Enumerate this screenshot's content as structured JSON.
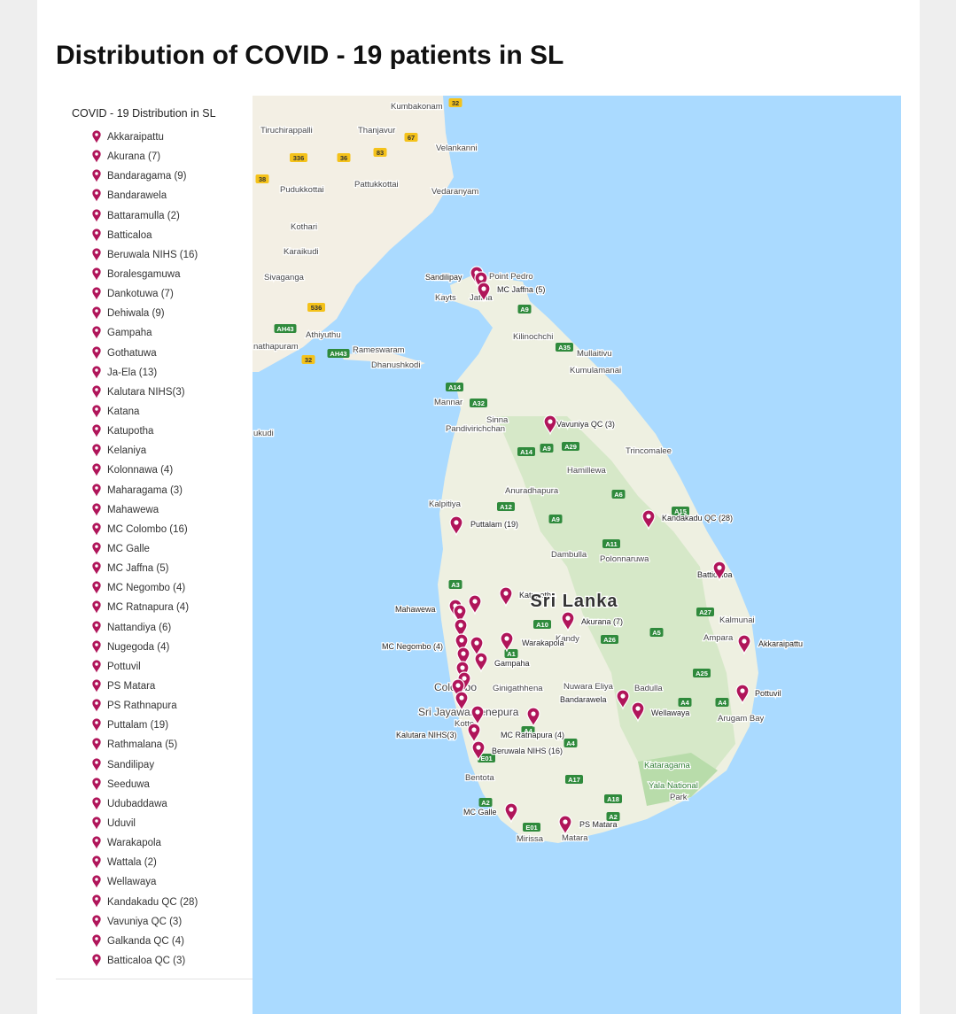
{
  "title": "Distribution of COVID - 19 patients in SL",
  "sidebar": {
    "heading": "COVID - 19 Distribution in SL",
    "items": [
      "Akkaraipattu",
      "Akurana (7)",
      "Bandaragama (9)",
      "Bandarawela",
      "Battaramulla (2)",
      "Batticaloa",
      "Beruwala NIHS (16)",
      "Boralesgamuwa",
      "Dankotuwa (7)",
      "Dehiwala (9)",
      "Gampaha",
      "Gothatuwa",
      "Ja-Ela (13)",
      "Kalutara NIHS(3)",
      "Katana",
      "Katupotha",
      "Kelaniya",
      "Kolonnawa (4)",
      "Maharagama (3)",
      "Mahawewa",
      "MC Colombo (16)",
      "MC Galle",
      "MC Jaffna (5)",
      "MC Negombo (4)",
      "MC Ratnapura (4)",
      "Nattandiya (6)",
      "Nugegoda (4)",
      "Pottuvil",
      "PS Matara",
      "PS Rathnapura",
      "Puttalam (19)",
      "Rathmalana (5)",
      "Sandilipay",
      "Seeduwa",
      "Udubaddawa",
      "Uduvil",
      "Warakapola",
      "Wattala (2)",
      "Wellawaya",
      "Kandakadu QC (28)",
      "Vavuniya QC (3)",
      "Galkanda QC (4)",
      "Batticaloa QC (3)"
    ]
  },
  "map": {
    "country_label": "Sri Lanka",
    "places": [
      "Kumbakonam",
      "Tiruchirappalli",
      "Thanjavur",
      "Velankanni",
      "Pudukkottai",
      "Pattukkottai",
      "Vedaranyam",
      "Kothari",
      "Karaikudi",
      "Sivaganga",
      "Athiyuthu",
      "nathapuram",
      "Rameswaram",
      "Dhanushkodi",
      "ukudi",
      "Point Pedro",
      "Kayts",
      "Jaffna",
      "Kilinochchi",
      "Mullaitivu",
      "Kumulamanai",
      "Mannar",
      "Sinna",
      "Pandivirichchan",
      "Trincomalee",
      "Hamillewa",
      "Anuradhapura",
      "Kalpitiya",
      "Dambulla",
      "Polonnaruwa",
      "Kalmunai",
      "Ampara",
      "Kandy",
      "Ginigathhena",
      "Nuwara Eliya",
      "Badulla",
      "Arugam Bay",
      "Kataragama",
      "Yala National",
      "Park",
      "Bentota",
      "Mirissa",
      "Matara",
      "Colombo",
      "Sri Jayawardenepura",
      "Kotte"
    ],
    "marker_labels": [
      "Sandilipay",
      "MC Jaffna (5)",
      "Vavuniya QC (3)",
      "Kandakadu QC (28)",
      "Puttalam (19)",
      "Batticaloa",
      "Katupotha",
      "Mahawewa",
      "Akurana (7)",
      "Warakapola",
      "MC Negombo (4)",
      "Gampaha",
      "Akkaraipattu",
      "Pottuvil",
      "Bandarawela",
      "Wellawaya",
      "MC Ratnapura (4)",
      "Kalutara NIHS(3)",
      "Beruwala NIHS (16)",
      "MC Galle",
      "PS Matara"
    ],
    "roads": [
      "32",
      "67",
      "83",
      "336",
      "36",
      "38",
      "536",
      "AH43",
      "32",
      "AH43",
      "A9",
      "A35",
      "A14",
      "A32",
      "A14",
      "A9",
      "A29",
      "A6",
      "A15",
      "A12",
      "A9",
      "A11",
      "A3",
      "A10",
      "A26",
      "A5",
      "A27",
      "A1",
      "A25",
      "A4",
      "A4",
      "A4",
      "A4",
      "E01",
      "A17",
      "A2",
      "A18",
      "A2",
      "E01"
    ]
  }
}
